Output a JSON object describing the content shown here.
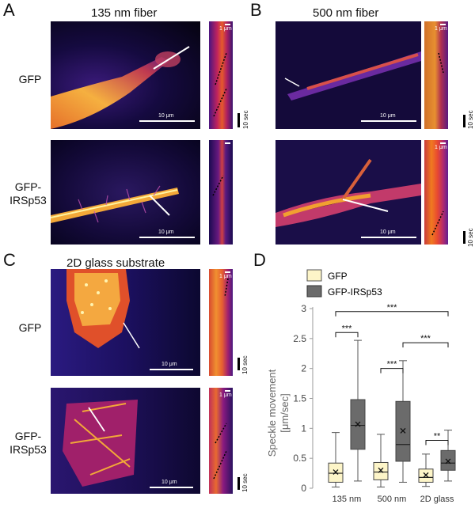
{
  "panels": {
    "A": {
      "letter": "A",
      "title": "135 nm fiber"
    },
    "B": {
      "letter": "B",
      "title": "500 nm fiber"
    },
    "C": {
      "letter": "C",
      "title": "2D glass substrate"
    },
    "D": {
      "letter": "D"
    }
  },
  "row_labels": {
    "gfp": "GFP",
    "gfp_irsp53_line1": "GFP-",
    "gfp_irsp53_line2": "IRSp53"
  },
  "scale": {
    "micro": "10 μm",
    "kymo": "1 μm",
    "time": "10 sec"
  },
  "colors": {
    "gfp_box": "#fdf5c8",
    "irsp53_box": "#6b6b6b"
  },
  "chart_data": {
    "type": "box",
    "ylabel_line1": "Speckle movement",
    "ylabel_line2": "[μm/sec]",
    "ylim": [
      0,
      3
    ],
    "yticks": [
      "0",
      "0.5",
      "1",
      "1.5",
      "2",
      "2.5",
      "3"
    ],
    "categories": [
      "135 nm",
      "500 nm",
      "2D glass"
    ],
    "legend": [
      {
        "name": "GFP",
        "color": "#fdf5c8"
      },
      {
        "name": "GFP-IRSp53",
        "color": "#6b6b6b"
      }
    ],
    "series": [
      {
        "name": "GFP",
        "boxes": [
          {
            "min": 0.02,
            "q1": 0.1,
            "median": 0.25,
            "q3": 0.42,
            "max": 0.93,
            "mean": 0.27
          },
          {
            "min": 0.02,
            "q1": 0.14,
            "median": 0.27,
            "q3": 0.43,
            "max": 0.9,
            "mean": 0.3
          },
          {
            "min": 0.03,
            "q1": 0.1,
            "median": 0.18,
            "q3": 0.32,
            "max": 0.57,
            "mean": 0.22
          }
        ]
      },
      {
        "name": "GFP-IRSp53",
        "boxes": [
          {
            "min": 0.12,
            "q1": 0.65,
            "median": 1.05,
            "q3": 1.48,
            "max": 2.47,
            "mean": 1.07
          },
          {
            "min": 0.1,
            "q1": 0.45,
            "median": 0.73,
            "q3": 1.45,
            "max": 2.13,
            "mean": 0.96
          },
          {
            "min": 0.12,
            "q1": 0.3,
            "median": 0.42,
            "q3": 0.63,
            "max": 0.97,
            "mean": 0.45
          }
        ]
      }
    ],
    "significance": [
      {
        "label": "***",
        "y": 2.6
      },
      {
        "label": "***",
        "y": 2.95
      },
      {
        "label": "***",
        "y": 2.0
      },
      {
        "label": "***",
        "y": 2.43
      },
      {
        "label": "**",
        "y": 0.8
      }
    ]
  }
}
